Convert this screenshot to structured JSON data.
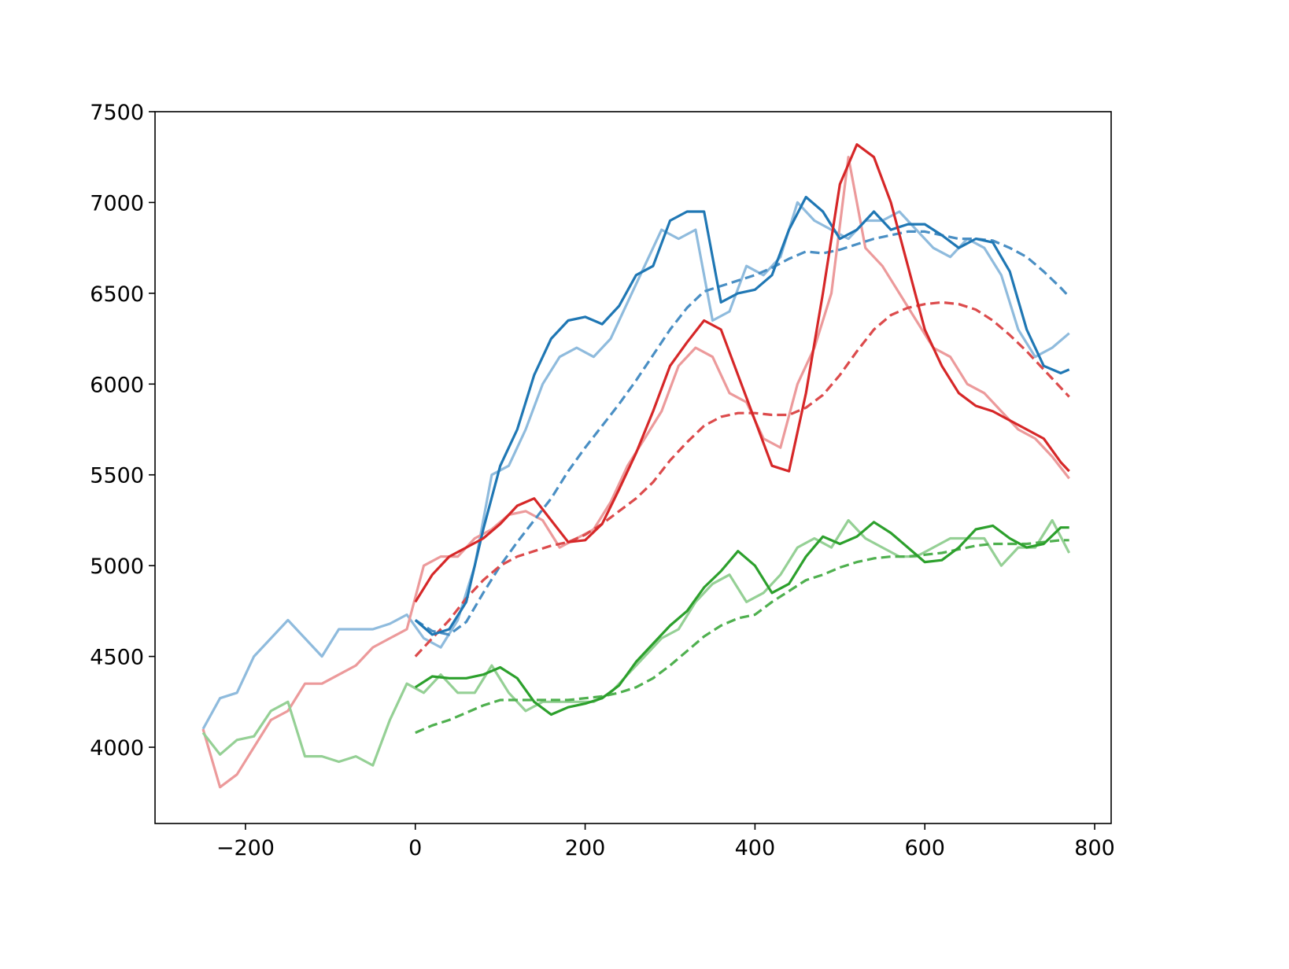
{
  "chart_data": {
    "type": "line",
    "xlim": [
      -306.5,
      819.4
    ],
    "ylim": [
      3580,
      7500
    ],
    "xticks": [
      {
        "value": -200,
        "label": "−200"
      },
      0,
      200,
      400,
      600,
      800
    ],
    "yticks": [
      4000,
      4500,
      5000,
      5500,
      6000,
      6500,
      7000,
      7500
    ],
    "series": [
      {
        "color": "#8fbbdd",
        "linestyle": "solid",
        "x": [
          -250,
          -230,
          -210,
          -190,
          -170,
          -150,
          -130,
          -110,
          -90,
          -70,
          -50,
          -30,
          -10,
          10,
          30,
          50,
          70,
          90,
          110,
          130,
          150,
          170,
          190,
          210,
          230,
          250,
          270,
          290,
          310,
          330,
          350,
          370,
          390,
          410,
          430,
          450,
          470,
          490,
          510,
          530,
          550,
          570,
          590,
          610,
          630,
          650,
          670,
          690,
          710,
          730,
          750,
          770
        ],
        "values": [
          4100,
          4270,
          4300,
          4500,
          4600,
          4700,
          4600,
          4500,
          4650,
          4650,
          4650,
          4680,
          4730,
          4600,
          4550,
          4700,
          5000,
          5500,
          5550,
          5750,
          6000,
          6150,
          6200,
          6150,
          6250,
          6450,
          6650,
          6850,
          6800,
          6850,
          6350,
          6400,
          6650,
          6600,
          6700,
          7000,
          6900,
          6850,
          6800,
          6900,
          6900,
          6950,
          6850,
          6750,
          6700,
          6800,
          6750,
          6600,
          6300,
          6150,
          6200,
          6280
        ]
      },
      {
        "color": "#ec9a9b",
        "linestyle": "solid",
        "x": [
          -250,
          -230,
          -210,
          -190,
          -170,
          -150,
          -130,
          -110,
          -90,
          -70,
          -50,
          -30,
          -10,
          10,
          30,
          50,
          70,
          90,
          110,
          130,
          150,
          170,
          190,
          210,
          230,
          250,
          270,
          290,
          310,
          330,
          350,
          370,
          390,
          410,
          430,
          450,
          470,
          490,
          510,
          530,
          550,
          570,
          590,
          610,
          630,
          650,
          670,
          690,
          710,
          730,
          750,
          770
        ],
        "values": [
          4100,
          3780,
          3850,
          4000,
          4150,
          4200,
          4350,
          4350,
          4400,
          4450,
          4550,
          4600,
          4650,
          5000,
          5050,
          5050,
          5150,
          5200,
          5280,
          5300,
          5250,
          5100,
          5150,
          5200,
          5350,
          5550,
          5700,
          5850,
          6100,
          6200,
          6150,
          5950,
          5900,
          5700,
          5650,
          6000,
          6200,
          6500,
          7250,
          6750,
          6650,
          6500,
          6350,
          6200,
          6150,
          6000,
          5950,
          5850,
          5750,
          5700,
          5600,
          5480
        ]
      },
      {
        "color": "#95d095",
        "linestyle": "solid",
        "x": [
          -250,
          -230,
          -210,
          -190,
          -170,
          -150,
          -130,
          -110,
          -90,
          -70,
          -50,
          -30,
          -10,
          10,
          30,
          50,
          70,
          90,
          110,
          130,
          150,
          170,
          190,
          210,
          230,
          250,
          270,
          290,
          310,
          330,
          350,
          370,
          390,
          410,
          430,
          450,
          470,
          490,
          510,
          530,
          550,
          570,
          590,
          610,
          630,
          650,
          670,
          690,
          710,
          730,
          750,
          770
        ],
        "values": [
          4080,
          3960,
          4040,
          4060,
          4200,
          4250,
          3950,
          3950,
          3920,
          3950,
          3900,
          4150,
          4350,
          4300,
          4400,
          4300,
          4300,
          4450,
          4300,
          4200,
          4250,
          4250,
          4250,
          4250,
          4300,
          4400,
          4500,
          4600,
          4650,
          4800,
          4900,
          4950,
          4800,
          4850,
          4950,
          5100,
          5150,
          5100,
          5250,
          5150,
          5100,
          5050,
          5050,
          5100,
          5150,
          5150,
          5150,
          5000,
          5100,
          5100,
          5250,
          5070
        ]
      },
      {
        "color": "#4a8fc4",
        "linestyle": "dashed",
        "x": [
          0,
          20,
          40,
          60,
          80,
          100,
          120,
          140,
          160,
          180,
          200,
          220,
          240,
          260,
          280,
          300,
          320,
          340,
          360,
          380,
          400,
          420,
          440,
          460,
          480,
          500,
          520,
          540,
          560,
          580,
          600,
          620,
          640,
          660,
          680,
          700,
          720,
          740,
          760,
          770
        ],
        "values": [
          4700,
          4640,
          4620,
          4690,
          4850,
          5000,
          5130,
          5250,
          5370,
          5520,
          5650,
          5770,
          5890,
          6020,
          6160,
          6300,
          6420,
          6510,
          6540,
          6570,
          6600,
          6640,
          6690,
          6730,
          6720,
          6740,
          6770,
          6800,
          6820,
          6840,
          6840,
          6820,
          6800,
          6800,
          6790,
          6750,
          6700,
          6620,
          6530,
          6480
        ]
      },
      {
        "color": "#dc4b4c",
        "linestyle": "dashed",
        "x": [
          0,
          20,
          40,
          60,
          80,
          100,
          120,
          140,
          160,
          180,
          200,
          220,
          240,
          260,
          280,
          300,
          320,
          340,
          360,
          380,
          400,
          420,
          440,
          460,
          480,
          500,
          520,
          540,
          560,
          580,
          600,
          620,
          640,
          660,
          680,
          700,
          720,
          740,
          760,
          770
        ],
        "values": [
          4500,
          4600,
          4700,
          4820,
          4920,
          5000,
          5050,
          5080,
          5110,
          5130,
          5170,
          5230,
          5300,
          5370,
          5460,
          5580,
          5680,
          5770,
          5820,
          5840,
          5840,
          5830,
          5830,
          5870,
          5940,
          6050,
          6180,
          6300,
          6380,
          6420,
          6440,
          6450,
          6440,
          6410,
          6350,
          6270,
          6180,
          6080,
          5980,
          5930
        ]
      },
      {
        "color": "#4fb04f",
        "linestyle": "dashed",
        "x": [
          0,
          20,
          40,
          60,
          80,
          100,
          120,
          140,
          160,
          180,
          200,
          220,
          240,
          260,
          280,
          300,
          320,
          340,
          360,
          380,
          400,
          420,
          440,
          460,
          480,
          500,
          520,
          540,
          560,
          580,
          600,
          620,
          640,
          660,
          680,
          700,
          720,
          740,
          760,
          770
        ],
        "values": [
          4080,
          4120,
          4150,
          4190,
          4230,
          4260,
          4260,
          4260,
          4260,
          4260,
          4270,
          4280,
          4300,
          4330,
          4380,
          4450,
          4530,
          4610,
          4670,
          4710,
          4730,
          4800,
          4860,
          4920,
          4950,
          4990,
          5020,
          5040,
          5050,
          5050,
          5060,
          5070,
          5090,
          5110,
          5120,
          5120,
          5120,
          5130,
          5140,
          5140
        ]
      },
      {
        "color": "#1f77b4",
        "linestyle": "solid",
        "x": [
          0,
          20,
          40,
          60,
          80,
          100,
          120,
          140,
          160,
          180,
          200,
          220,
          240,
          260,
          280,
          300,
          320,
          340,
          360,
          380,
          400,
          420,
          440,
          460,
          480,
          500,
          520,
          540,
          560,
          580,
          600,
          620,
          640,
          660,
          680,
          700,
          720,
          740,
          760,
          770
        ],
        "values": [
          4700,
          4620,
          4650,
          4800,
          5200,
          5550,
          5750,
          6050,
          6250,
          6350,
          6370,
          6330,
          6430,
          6600,
          6650,
          6900,
          6950,
          6950,
          6450,
          6500,
          6520,
          6600,
          6850,
          7030,
          6950,
          6800,
          6850,
          6950,
          6850,
          6880,
          6880,
          6820,
          6750,
          6800,
          6780,
          6620,
          6300,
          6100,
          6060,
          6080
        ]
      },
      {
        "color": "#d62728",
        "linestyle": "solid",
        "x": [
          0,
          20,
          40,
          60,
          80,
          100,
          120,
          140,
          160,
          180,
          200,
          220,
          240,
          260,
          280,
          300,
          320,
          340,
          360,
          380,
          400,
          420,
          440,
          460,
          480,
          500,
          520,
          540,
          560,
          580,
          600,
          620,
          640,
          660,
          680,
          700,
          720,
          740,
          760,
          770
        ],
        "values": [
          4800,
          4950,
          5050,
          5100,
          5150,
          5230,
          5330,
          5370,
          5250,
          5130,
          5140,
          5230,
          5420,
          5620,
          5850,
          6100,
          6230,
          6350,
          6300,
          6050,
          5800,
          5550,
          5520,
          5950,
          6500,
          7100,
          7320,
          7250,
          7000,
          6650,
          6300,
          6100,
          5950,
          5880,
          5850,
          5800,
          5750,
          5700,
          5570,
          5520
        ]
      },
      {
        "color": "#2ca02c",
        "linestyle": "solid",
        "x": [
          0,
          20,
          40,
          60,
          80,
          100,
          120,
          140,
          160,
          180,
          200,
          220,
          240,
          260,
          280,
          300,
          320,
          340,
          360,
          380,
          400,
          420,
          440,
          460,
          480,
          500,
          520,
          540,
          560,
          580,
          600,
          620,
          640,
          660,
          680,
          700,
          720,
          740,
          760,
          770
        ],
        "values": [
          4330,
          4390,
          4380,
          4380,
          4400,
          4440,
          4380,
          4250,
          4180,
          4220,
          4240,
          4270,
          4340,
          4470,
          4570,
          4670,
          4750,
          4880,
          4970,
          5080,
          5000,
          4850,
          4900,
          5050,
          5160,
          5120,
          5160,
          5240,
          5180,
          5100,
          5020,
          5030,
          5100,
          5200,
          5220,
          5150,
          5100,
          5120,
          5210,
          5210
        ]
      }
    ]
  }
}
